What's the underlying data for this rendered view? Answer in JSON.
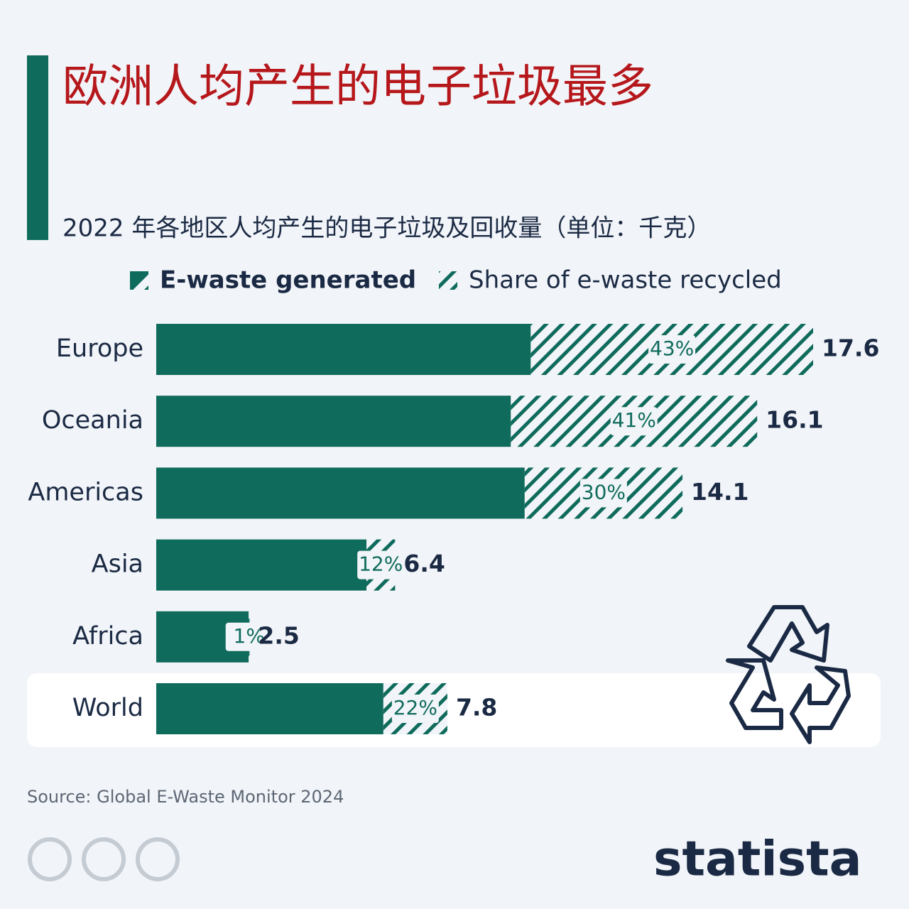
{
  "chart_data": {
    "type": "bar",
    "orientation": "horizontal",
    "title": "欧洲人均产生的电子垃圾最多",
    "subtitle": "2022 年各地区人均产生的电子垃圾及回收量（单位：千克）",
    "categories": [
      "Europe",
      "Oceania",
      "Americas",
      "Asia",
      "Africa",
      "World"
    ],
    "series": [
      {
        "name": "E-waste generated",
        "color": "#0f6b5c",
        "values": [
          17.6,
          16.1,
          14.1,
          6.4,
          2.5,
          7.8
        ]
      },
      {
        "name": "Share of e-waste recycled",
        "color": "#0f6b5c",
        "values": [
          43,
          41,
          30,
          12,
          1,
          22
        ],
        "value_labels": [
          "43%",
          "41%",
          "30%",
          "12%",
          "1%",
          "22%"
        ]
      }
    ],
    "source": "Source: Global E-Waste Monitor 2024",
    "brand": "statista"
  }
}
